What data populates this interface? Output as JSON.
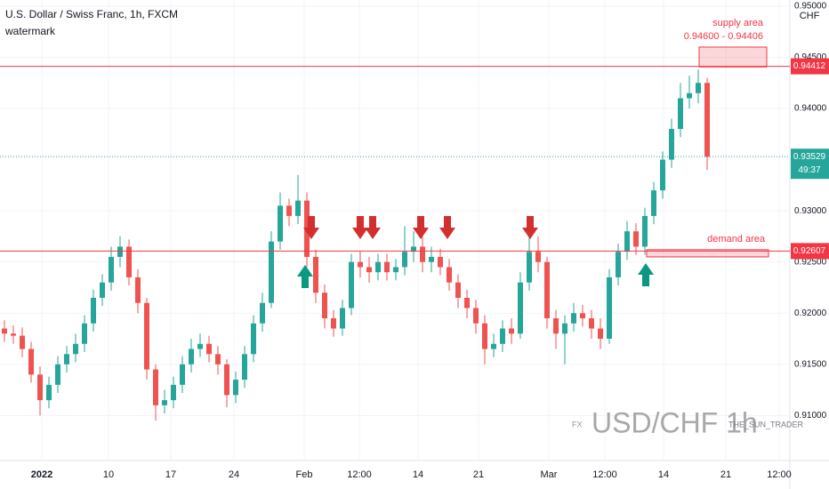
{
  "chart_data": {
    "type": "candlestick",
    "title": "U.S. Dollar / Swiss Franc, 1h, FXCM",
    "subtitle": "watermark",
    "currency": "CHF",
    "up_color": "#26a69a",
    "down_color": "#ef5350",
    "open": [
      0.9185,
      0.918,
      0.9178,
      0.9165,
      0.914,
      0.9115,
      0.913,
      0.915,
      0.916,
      0.917,
      0.919,
      0.9215,
      0.923,
      0.9255,
      0.9265,
      0.9235,
      0.921,
      0.9145,
      0.911,
      0.9115,
      0.913,
      0.915,
      0.9165,
      0.917,
      0.916,
      0.915,
      0.912,
      0.9135,
      0.916,
      0.919,
      0.921,
      0.927,
      0.9305,
      0.9295,
      0.931,
      0.9255,
      0.922,
      0.9195,
      0.9185,
      0.9205,
      0.925,
      0.9245,
      0.924,
      0.925,
      0.924,
      0.9245,
      0.926,
      0.9265,
      0.925,
      0.9255,
      0.9245,
      0.923,
      0.9215,
      0.9205,
      0.919,
      0.9165,
      0.917,
      0.9185,
      0.918,
      0.923,
      0.926,
      0.925,
      0.9195,
      0.918,
      0.919,
      0.92,
      0.9195,
      0.9185,
      0.9175,
      0.9235,
      0.926,
      0.928,
      0.9265,
      0.9295,
      0.932,
      0.935,
      0.938,
      0.941,
      0.9415,
      0.9425
    ],
    "high": [
      0.9193,
      0.9188,
      0.9186,
      0.9172,
      0.9148,
      0.9138,
      0.9158,
      0.9168,
      0.918,
      0.9198,
      0.9223,
      0.9238,
      0.9265,
      0.9275,
      0.9272,
      0.9243,
      0.9215,
      0.915,
      0.9125,
      0.9138,
      0.9158,
      0.9175,
      0.918,
      0.9178,
      0.9168,
      0.9155,
      0.9143,
      0.9168,
      0.9198,
      0.922,
      0.928,
      0.9318,
      0.9312,
      0.9335,
      0.9318,
      0.9262,
      0.9228,
      0.9203,
      0.9213,
      0.9258,
      0.926,
      0.9255,
      0.9258,
      0.9258,
      0.9253,
      0.9285,
      0.928,
      0.9275,
      0.9265,
      0.9263,
      0.9253,
      0.9238,
      0.9223,
      0.9213,
      0.9198,
      0.918,
      0.9193,
      0.9195,
      0.924,
      0.9285,
      0.9275,
      0.9255,
      0.9203,
      0.9198,
      0.921,
      0.9208,
      0.9203,
      0.9195,
      0.9243,
      0.9268,
      0.929,
      0.9288,
      0.9303,
      0.9328,
      0.9358,
      0.939,
      0.9425,
      0.9432,
      0.9438,
      0.943
    ],
    "low": [
      0.9172,
      0.917,
      0.9157,
      0.9132,
      0.91,
      0.9107,
      0.9122,
      0.9142,
      0.9152,
      0.9162,
      0.9182,
      0.9207,
      0.9222,
      0.9245,
      0.9227,
      0.92,
      0.9135,
      0.9095,
      0.9102,
      0.9107,
      0.9122,
      0.9142,
      0.9157,
      0.9152,
      0.914,
      0.9108,
      0.9112,
      0.9127,
      0.9152,
      0.9182,
      0.9205,
      0.9262,
      0.9285,
      0.9287,
      0.9245,
      0.921,
      0.9185,
      0.9177,
      0.9178,
      0.9198,
      0.9235,
      0.923,
      0.9232,
      0.9232,
      0.9232,
      0.9237,
      0.925,
      0.924,
      0.924,
      0.9237,
      0.9222,
      0.9205,
      0.9195,
      0.918,
      0.915,
      0.9157,
      0.9162,
      0.917,
      0.9175,
      0.9222,
      0.924,
      0.9185,
      0.9165,
      0.915,
      0.9182,
      0.9187,
      0.9175,
      0.9165,
      0.917,
      0.9227,
      0.9252,
      0.9257,
      0.9257,
      0.9287,
      0.9312,
      0.9342,
      0.9372,
      0.94,
      0.9405,
      0.934
    ],
    "close": [
      0.918,
      0.9178,
      0.9165,
      0.914,
      0.9115,
      0.913,
      0.915,
      0.916,
      0.917,
      0.919,
      0.9215,
      0.923,
      0.9255,
      0.9265,
      0.9235,
      0.921,
      0.9145,
      0.911,
      0.9115,
      0.913,
      0.915,
      0.9165,
      0.917,
      0.916,
      0.915,
      0.912,
      0.9135,
      0.916,
      0.919,
      0.921,
      0.927,
      0.9305,
      0.9295,
      0.931,
      0.9255,
      0.922,
      0.9195,
      0.9185,
      0.9205,
      0.925,
      0.9245,
      0.924,
      0.925,
      0.924,
      0.9245,
      0.926,
      0.9265,
      0.925,
      0.9255,
      0.9245,
      0.923,
      0.9215,
      0.9205,
      0.919,
      0.9165,
      0.917,
      0.9185,
      0.918,
      0.923,
      0.926,
      0.925,
      0.9195,
      0.918,
      0.919,
      0.92,
      0.9195,
      0.9185,
      0.9175,
      0.9235,
      0.926,
      0.928,
      0.9265,
      0.9295,
      0.932,
      0.935,
      0.938,
      0.941,
      0.9415,
      0.9425,
      0.93529
    ],
    "xlim": [
      -0.5,
      88.3
    ],
    "xticks": [
      {
        "value": 4.2,
        "label": "2022"
      },
      {
        "value": 11.7,
        "label": "10"
      },
      {
        "value": 18.7,
        "label": "17"
      },
      {
        "value": 25.8,
        "label": "24"
      },
      {
        "value": 33.7,
        "label": "Feb"
      },
      {
        "value": 39.9,
        "label": "12:00"
      },
      {
        "value": 46.5,
        "label": "14"
      },
      {
        "value": 53.3,
        "label": "21"
      },
      {
        "value": 61.2,
        "label": "Mar"
      },
      {
        "value": 67.5,
        "label": "12:00"
      },
      {
        "value": 74.1,
        "label": "14"
      },
      {
        "value": 81.1,
        "label": "21"
      },
      {
        "value": 87.1,
        "label": "12:00"
      }
    ],
    "ylim": [
      0.9056,
      0.9506
    ],
    "yticks": [
      {
        "value": 0.91,
        "label": "0.91000"
      },
      {
        "value": 0.915,
        "label": "0.91500"
      },
      {
        "value": 0.92,
        "label": "0.92000"
      },
      {
        "value": 0.925,
        "label": "0.92500"
      },
      {
        "value": 0.93,
        "label": "0.93000"
      },
      {
        "value": 0.94,
        "label": "0.94000"
      },
      {
        "value": 0.945,
        "label": "0.94500"
      },
      {
        "value": 0.95,
        "label": "0.95000"
      }
    ],
    "grid": true,
    "levels": [
      {
        "value": 0.94412,
        "label": "0.94412",
        "color": "#f23645"
      },
      {
        "value": 0.92607,
        "label": "0.92607",
        "color": "#f23645"
      }
    ],
    "last_price": {
      "value": 0.93529,
      "label": "0.93529",
      "color": "#26a69a"
    },
    "countdown": "49:37",
    "zones": [
      {
        "name": "supply area",
        "range_label": "0.94600 - 0.94406",
        "top": 0.946,
        "bottom": 0.94406,
        "x": [
          78.1,
          85.7
        ]
      },
      {
        "name": "demand area",
        "top": 0.9262,
        "bottom": 0.9255,
        "x": [
          72.2,
          85.9
        ]
      }
    ],
    "watermark": {
      "prefix": "FX",
      "symbol": "USD/CHF 1h",
      "author": "THE_SUN_TRADER"
    }
  }
}
